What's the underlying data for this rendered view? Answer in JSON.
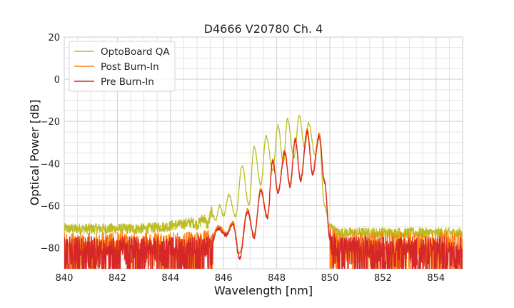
{
  "chart_data": {
    "type": "line",
    "title": "D4666 V20780 Ch. 4",
    "xlabel": "Wavelength [nm]",
    "ylabel": "Optical Power [dB]",
    "xlim": [
      840,
      855
    ],
    "ylim": [
      -90,
      20
    ],
    "xticks": [
      840,
      842,
      844,
      846,
      848,
      850,
      852,
      854
    ],
    "yticks": [
      20,
      0,
      -20,
      -40,
      -60,
      -80
    ],
    "grid": true,
    "legend_position": "top-left",
    "series": [
      {
        "name": "OptoBoard QA",
        "color": "#bcbd22",
        "points": [
          [
            840.0,
            -71
          ],
          [
            842.0,
            -71
          ],
          [
            843.0,
            -71
          ],
          [
            843.8,
            -70
          ],
          [
            844.3,
            -69
          ],
          [
            844.8,
            -68
          ],
          [
            845.0,
            -69
          ],
          [
            845.25,
            -66
          ],
          [
            845.4,
            -69
          ],
          [
            845.55,
            -63
          ],
          [
            845.7,
            -67
          ],
          [
            845.85,
            -60
          ],
          [
            846.0,
            -65
          ],
          [
            846.2,
            -55
          ],
          [
            846.45,
            -65
          ],
          [
            846.7,
            -41
          ],
          [
            846.95,
            -60
          ],
          [
            847.15,
            -32
          ],
          [
            847.4,
            -50
          ],
          [
            847.6,
            -27
          ],
          [
            847.85,
            -43
          ],
          [
            848.05,
            -22
          ],
          [
            848.25,
            -40
          ],
          [
            848.4,
            -19
          ],
          [
            848.65,
            -37
          ],
          [
            848.85,
            -17
          ],
          [
            849.05,
            -33
          ],
          [
            849.2,
            -21
          ],
          [
            849.45,
            -36
          ],
          [
            849.6,
            -28
          ],
          [
            849.8,
            -60
          ],
          [
            850.0,
            -70
          ],
          [
            850.3,
            -73
          ],
          [
            852.0,
            -73
          ],
          [
            855.0,
            -73
          ]
        ]
      },
      {
        "name": "Post Burn-In",
        "color": "#ff7f0e",
        "points": [
          [
            840.0,
            -78
          ],
          [
            844.5,
            -78
          ],
          [
            845.5,
            -77
          ],
          [
            845.8,
            -70
          ],
          [
            846.1,
            -73
          ],
          [
            846.35,
            -68
          ],
          [
            846.6,
            -83
          ],
          [
            846.9,
            -62
          ],
          [
            847.15,
            -74
          ],
          [
            847.4,
            -52
          ],
          [
            847.65,
            -65
          ],
          [
            847.85,
            -38
          ],
          [
            848.05,
            -53
          ],
          [
            848.3,
            -34
          ],
          [
            848.5,
            -50
          ],
          [
            848.7,
            -28
          ],
          [
            848.9,
            -47
          ],
          [
            849.15,
            -24
          ],
          [
            849.35,
            -44
          ],
          [
            849.6,
            -26
          ],
          [
            849.8,
            -48
          ],
          [
            850.0,
            -74
          ],
          [
            850.3,
            -78
          ],
          [
            855.0,
            -78
          ]
        ]
      },
      {
        "name": "Pre Burn-In",
        "color": "#d62728",
        "points": [
          [
            840.0,
            -80
          ],
          [
            844.5,
            -80
          ],
          [
            845.5,
            -79
          ],
          [
            845.8,
            -71
          ],
          [
            846.1,
            -74
          ],
          [
            846.35,
            -69
          ],
          [
            846.6,
            -85
          ],
          [
            846.9,
            -63
          ],
          [
            847.15,
            -75
          ],
          [
            847.4,
            -53
          ],
          [
            847.65,
            -66
          ],
          [
            847.85,
            -39
          ],
          [
            848.05,
            -54
          ],
          [
            848.3,
            -35
          ],
          [
            848.5,
            -51
          ],
          [
            848.7,
            -29
          ],
          [
            848.9,
            -48
          ],
          [
            849.15,
            -25
          ],
          [
            849.35,
            -45
          ],
          [
            849.6,
            -27
          ],
          [
            849.8,
            -49
          ],
          [
            850.0,
            -76
          ],
          [
            850.3,
            -80
          ],
          [
            855.0,
            -80
          ]
        ]
      }
    ]
  }
}
